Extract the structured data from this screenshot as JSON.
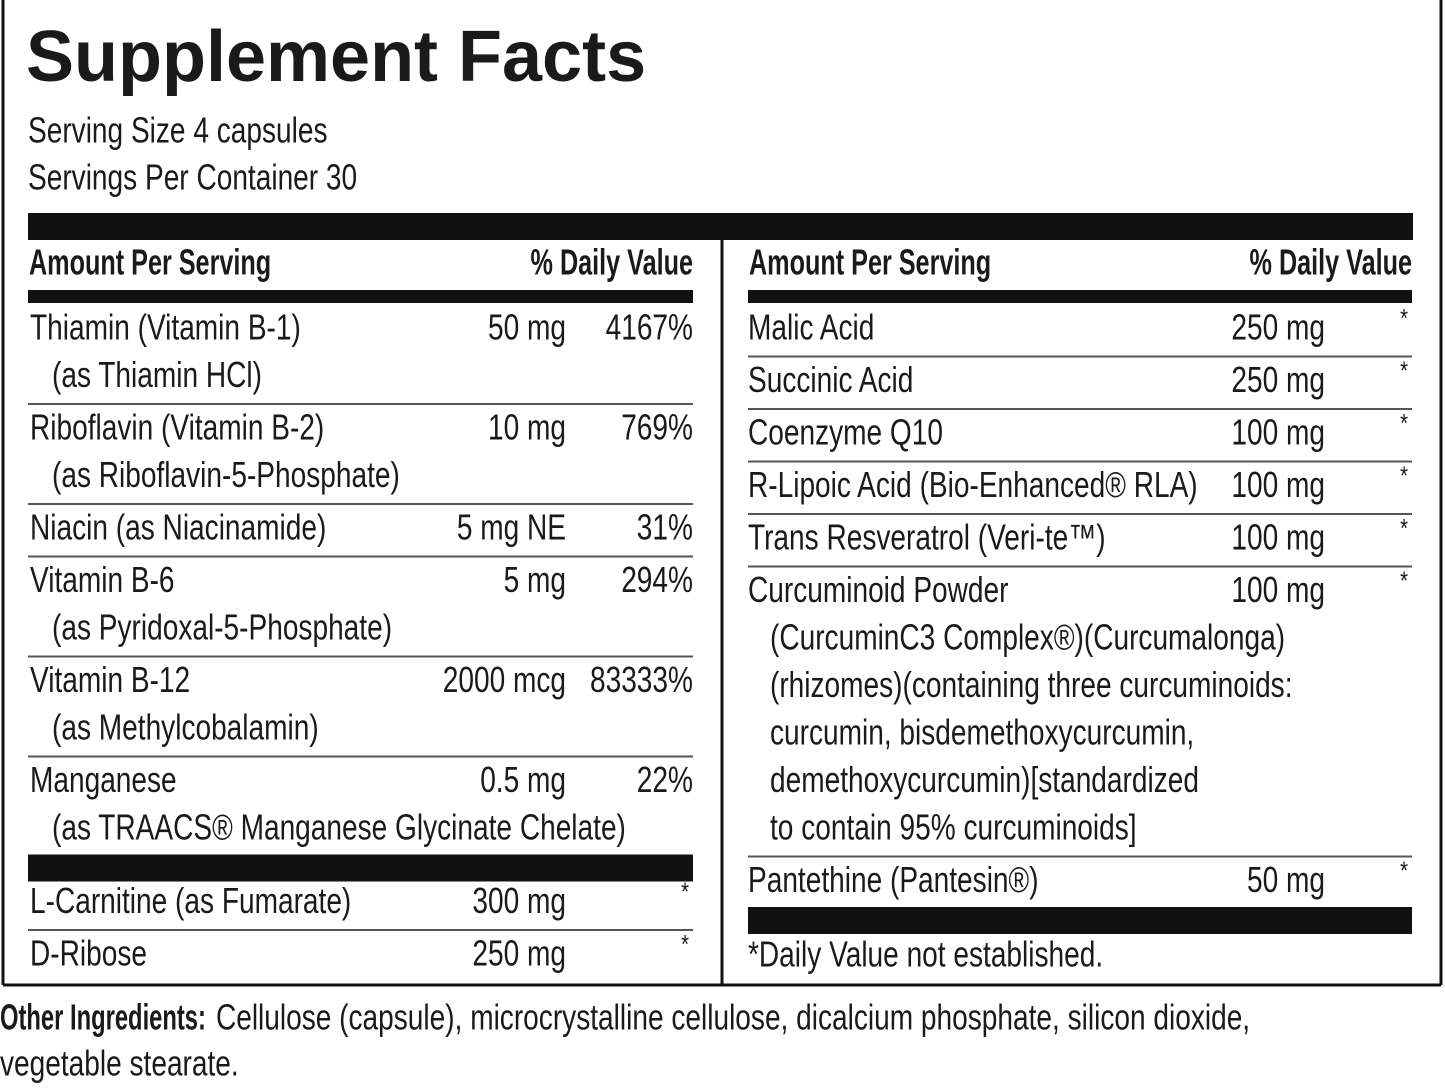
{
  "title": "Supplement Facts",
  "serving_size": "Serving Size 4 capsules",
  "servings_per_container": "Servings Per Container 30",
  "columns": [
    {
      "header": {
        "amount": "Amount Per Serving",
        "dv": "% Daily Value"
      },
      "rows": [
        {
          "name": "Thiamin (Vitamin B-1)",
          "sub": [
            "(as Thiamin HCl)"
          ],
          "amount": "50 mg",
          "dv": "4167%"
        },
        {
          "name": "Riboflavin (Vitamin B-2)",
          "sub": [
            "(as Riboflavin-5-Phosphate)"
          ],
          "amount": "10 mg",
          "dv": "769%"
        },
        {
          "name": "Niacin (as Niacinamide)",
          "amount": "5 mg NE",
          "dv": "31%"
        },
        {
          "name": "Vitamin B-6",
          "sub": [
            "(as Pyridoxal-5-Phosphate)"
          ],
          "amount": "5 mg",
          "dv": "294%"
        },
        {
          "name": "Vitamin B-12",
          "sub": [
            "(as Methylcobalamin)"
          ],
          "amount": "2000 mcg",
          "dv": "83333%"
        },
        {
          "name": "Manganese",
          "sub": [
            "(as TRAACS® Manganese Glycinate Chelate)"
          ],
          "amount": "0.5 mg",
          "dv": "22%"
        }
      ],
      "rows_after_bar": [
        {
          "name": "L-Carnitine (as Fumarate)",
          "amount": "300 mg",
          "dv": "*"
        },
        {
          "name": "D-Ribose",
          "amount": "250 mg",
          "dv": "*"
        }
      ]
    },
    {
      "header": {
        "amount": "Amount Per Serving",
        "dv": "% Daily Value"
      },
      "rows": [
        {
          "name": "Malic Acid",
          "amount": "250 mg",
          "dv": "*"
        },
        {
          "name": "Succinic Acid",
          "amount": "250 mg",
          "dv": "*"
        },
        {
          "name": "Coenzyme Q10",
          "amount": "100 mg",
          "dv": "*"
        },
        {
          "name": "R-Lipoic Acid (Bio-Enhanced® RLA)",
          "amount": "100 mg",
          "dv": "*"
        },
        {
          "name": "Trans Resveratrol (Veri-te™)",
          "amount": "100 mg",
          "dv": "*"
        },
        {
          "name": "Curcuminoid Powder",
          "sub": [
            "(CurcuminC3 Complex®)(Curcumalonga)",
            "(rhizomes)(containing three curcuminoids:",
            "curcumin, bisdemethoxycurcumin,",
            "demethoxycurcumin)[standardized",
            "to contain 95% curcuminoids]"
          ],
          "amount": "100 mg",
          "dv": "*"
        },
        {
          "name": "Pantethine (Pantesin®)",
          "amount": "50 mg",
          "dv": "*"
        }
      ],
      "footnote": "*Daily Value not established."
    }
  ],
  "other_ingredients": {
    "label": "Other Ingredients:",
    "lines": [
      "Cellulose (capsule), microcrystalline cellulose, dicalcium phosphate, silicon dioxide,",
      "vegetable stearate."
    ]
  }
}
